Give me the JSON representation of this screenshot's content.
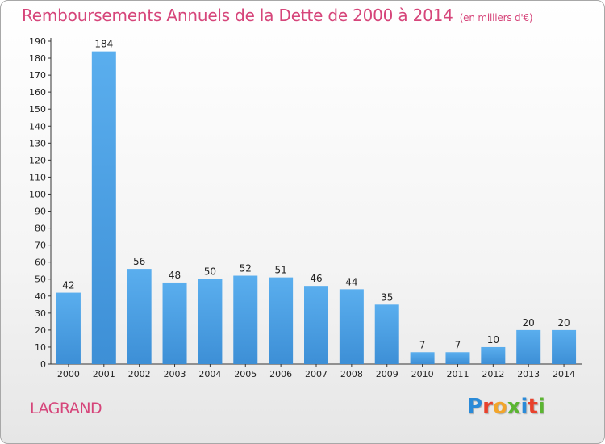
{
  "chart_data": {
    "type": "bar",
    "title": "Remboursements Annuels de la Dette de 2000 à 2014",
    "subtitle": "(en milliers d'€)",
    "categories": [
      "2000",
      "2001",
      "2002",
      "2003",
      "2004",
      "2005",
      "2006",
      "2007",
      "2008",
      "2009",
      "2010",
      "2011",
      "2012",
      "2013",
      "2014"
    ],
    "values": [
      42,
      184,
      56,
      48,
      50,
      52,
      51,
      46,
      44,
      35,
      7,
      7,
      10,
      20,
      20
    ],
    "ylim": [
      0,
      190
    ],
    "yticks": [
      0,
      10,
      20,
      30,
      40,
      50,
      60,
      70,
      80,
      90,
      100,
      110,
      120,
      130,
      140,
      150,
      160,
      170,
      180,
      190
    ],
    "grid": false,
    "bar_color": "#3d8fd6"
  },
  "commune": "LAGRAND",
  "logo": {
    "letters": [
      "P",
      "r",
      "o",
      "x",
      "i",
      "t",
      "i"
    ],
    "colors": [
      "#2a8ad8",
      "#e8412c",
      "#f2a52b",
      "#5bb531",
      "#2a8ad8",
      "#e8412c",
      "#5bb531"
    ]
  }
}
